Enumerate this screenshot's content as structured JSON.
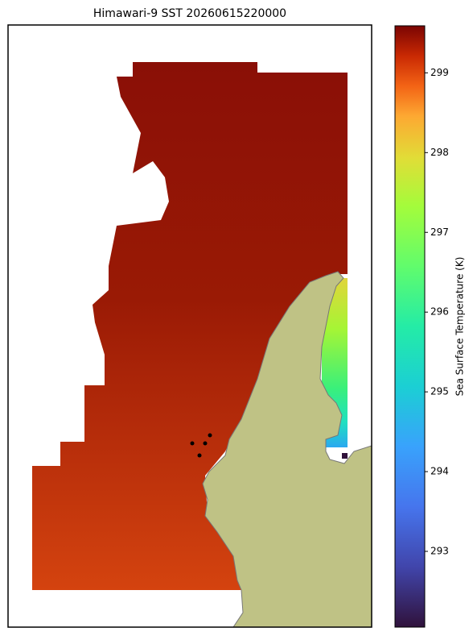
{
  "title": "Himawari-9 SST 20260615220000",
  "colorbar": {
    "label": "Sea Surface Temperature (K)",
    "lim": [
      292.05,
      299.59
    ],
    "ticks": [
      293,
      294,
      295,
      296,
      297,
      298,
      299
    ]
  }
}
